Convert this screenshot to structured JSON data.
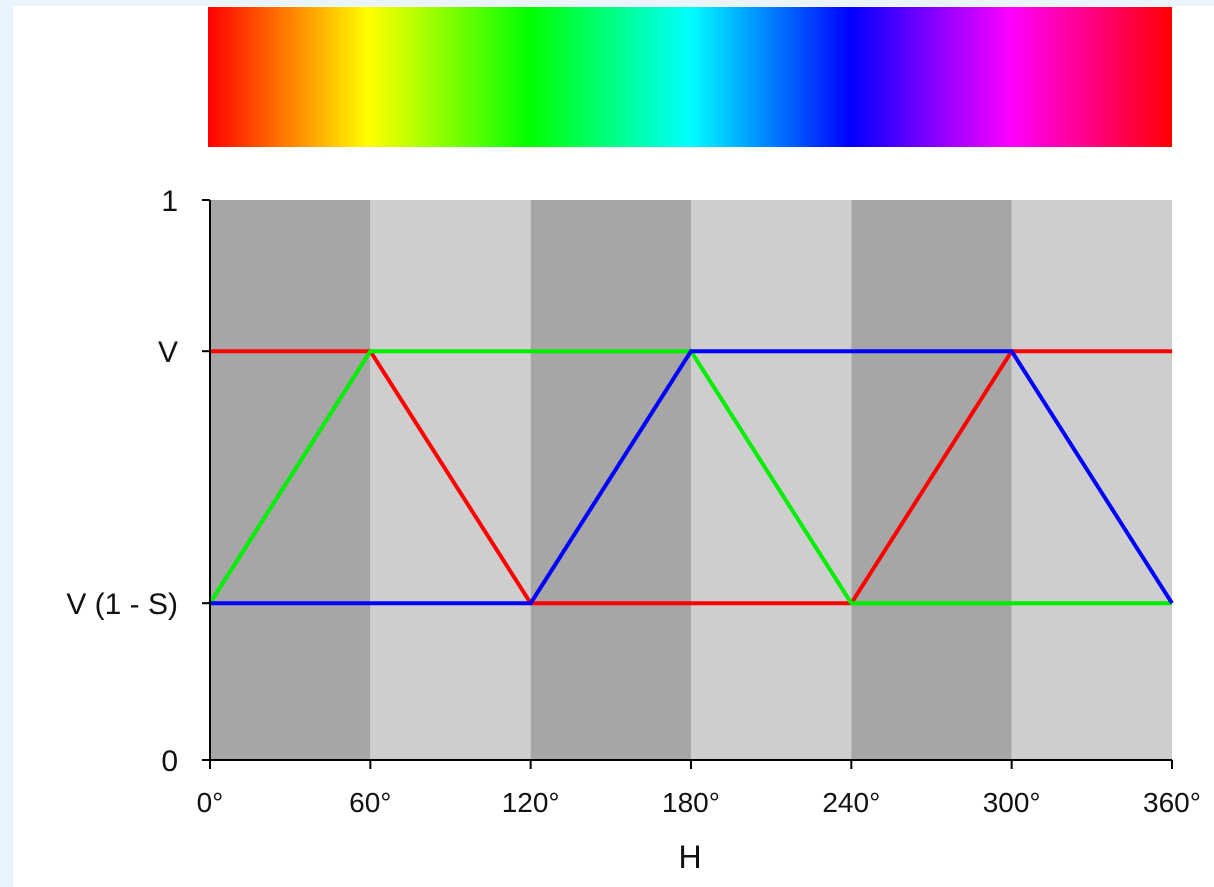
{
  "chart_data": {
    "type": "line",
    "title": "",
    "xlabel": "H",
    "ylabel": "",
    "x": [
      0,
      60,
      120,
      180,
      240,
      300,
      360
    ],
    "x_tick_labels": [
      "0°",
      "60°",
      "120°",
      "180°",
      "240°",
      "300°",
      "360°"
    ],
    "xlim": [
      0,
      360
    ],
    "ylim": [
      0,
      1
    ],
    "y_ticks": [
      {
        "value": 0,
        "label": "0"
      },
      {
        "value": 0.28,
        "label": "V (1 - S)"
      },
      {
        "value": 0.73,
        "label": "V"
      },
      {
        "value": 1,
        "label": "1"
      }
    ],
    "background_bands": {
      "boundaries": [
        0,
        60,
        120,
        180,
        240,
        300,
        360
      ],
      "colors": [
        "#a6a6a6",
        "#cecece"
      ]
    },
    "hue_spectrum": {
      "stops": [
        "#ff0000",
        "#ffff00",
        "#00ff00",
        "#00ffff",
        "#0000ff",
        "#ff00ff",
        "#ff0000"
      ]
    },
    "series": [
      {
        "color": "#ff0000",
        "values": [
          0.73,
          0.73,
          0.28,
          0.28,
          0.28,
          0.73,
          0.73
        ]
      },
      {
        "color": "#00ee00",
        "values": [
          0.28,
          0.73,
          0.73,
          0.73,
          0.28,
          0.28,
          0.28
        ]
      },
      {
        "color": "#0000ff",
        "values": [
          0.28,
          0.28,
          0.28,
          0.73,
          0.73,
          0.73,
          0.28
        ]
      }
    ]
  }
}
